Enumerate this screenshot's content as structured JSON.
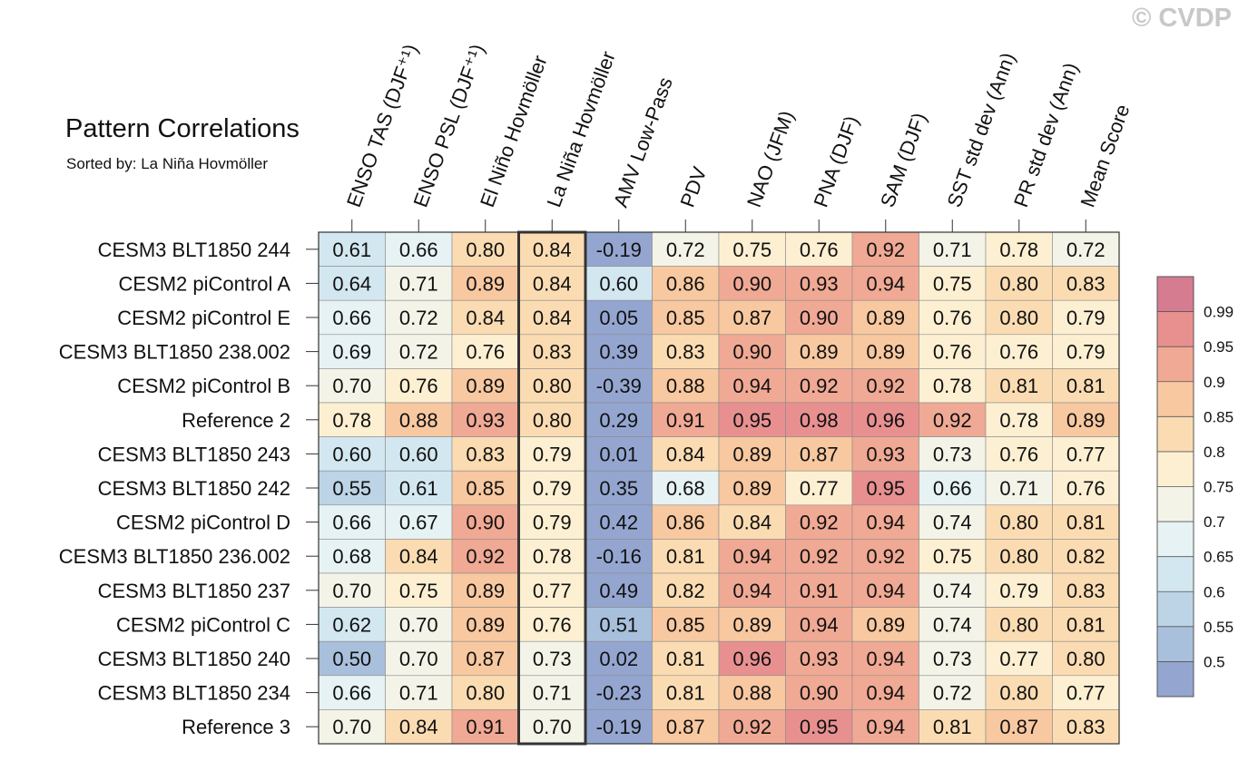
{
  "chart_data": {
    "type": "heatmap",
    "title": "Pattern Correlations",
    "subtitle": "Sorted by: La Niña Hovmöller",
    "watermark": "© CVDP",
    "highlight_column": "La Niña Hovmöller",
    "columns": [
      "ENSO TAS (DJF⁺¹)",
      "ENSO PSL (DJF⁺¹)",
      "El Niño Hovmöller",
      "La Niña Hovmöller",
      "AMV Low-Pass",
      "PDV",
      "NAO (JFM)",
      "PNA (DJF)",
      "SAM (DJF)",
      "SST std dev (Ann)",
      "PR std dev (Ann)",
      "Mean Score"
    ],
    "rows": [
      "CESM3 BLT1850 244",
      "CESM2 piControl A",
      "CESM2 piControl E",
      "CESM3 BLT1850 238.002",
      "CESM2 piControl B",
      "Reference 2",
      "CESM3 BLT1850 243",
      "CESM3 BLT1850 242",
      "CESM2 piControl D",
      "CESM3 BLT1850 236.002",
      "CESM3 BLT1850 237",
      "CESM2 piControl C",
      "CESM3 BLT1850 240",
      "CESM3 BLT1850 234",
      "Reference 3"
    ],
    "values": [
      [
        "0.61",
        "0.66",
        "0.80",
        "0.84",
        "-0.19",
        "0.72",
        "0.75",
        "0.76",
        "0.92",
        "0.71",
        "0.78",
        "0.72"
      ],
      [
        "0.64",
        "0.71",
        "0.89",
        "0.84",
        "0.60",
        "0.86",
        "0.90",
        "0.93",
        "0.94",
        "0.75",
        "0.80",
        "0.83"
      ],
      [
        "0.66",
        "0.72",
        "0.84",
        "0.84",
        "0.05",
        "0.85",
        "0.87",
        "0.90",
        "0.89",
        "0.76",
        "0.80",
        "0.79"
      ],
      [
        "0.69",
        "0.72",
        "0.76",
        "0.83",
        "0.39",
        "0.83",
        "0.90",
        "0.89",
        "0.89",
        "0.76",
        "0.76",
        "0.79"
      ],
      [
        "0.70",
        "0.76",
        "0.89",
        "0.80",
        "-0.39",
        "0.88",
        "0.94",
        "0.92",
        "0.92",
        "0.78",
        "0.81",
        "0.81"
      ],
      [
        "0.78",
        "0.88",
        "0.93",
        "0.80",
        "0.29",
        "0.91",
        "0.95",
        "0.98",
        "0.96",
        "0.92",
        "0.78",
        "0.89"
      ],
      [
        "0.60",
        "0.60",
        "0.83",
        "0.79",
        "0.01",
        "0.84",
        "0.89",
        "0.87",
        "0.93",
        "0.73",
        "0.76",
        "0.77"
      ],
      [
        "0.55",
        "0.61",
        "0.85",
        "0.79",
        "0.35",
        "0.68",
        "0.89",
        "0.77",
        "0.95",
        "0.66",
        "0.71",
        "0.76"
      ],
      [
        "0.66",
        "0.67",
        "0.90",
        "0.79",
        "0.42",
        "0.86",
        "0.84",
        "0.92",
        "0.94",
        "0.74",
        "0.80",
        "0.81"
      ],
      [
        "0.68",
        "0.84",
        "0.92",
        "0.78",
        "-0.16",
        "0.81",
        "0.94",
        "0.92",
        "0.92",
        "0.75",
        "0.80",
        "0.82"
      ],
      [
        "0.70",
        "0.75",
        "0.89",
        "0.77",
        "0.49",
        "0.82",
        "0.94",
        "0.91",
        "0.94",
        "0.74",
        "0.79",
        "0.83"
      ],
      [
        "0.62",
        "0.70",
        "0.89",
        "0.76",
        "0.51",
        "0.85",
        "0.89",
        "0.94",
        "0.89",
        "0.74",
        "0.80",
        "0.81"
      ],
      [
        "0.50",
        "0.70",
        "0.87",
        "0.73",
        "0.02",
        "0.81",
        "0.96",
        "0.93",
        "0.94",
        "0.73",
        "0.77",
        "0.80"
      ],
      [
        "0.66",
        "0.71",
        "0.80",
        "0.71",
        "-0.23",
        "0.81",
        "0.88",
        "0.90",
        "0.94",
        "0.72",
        "0.80",
        "0.77"
      ],
      [
        "0.70",
        "0.84",
        "0.91",
        "0.70",
        "-0.19",
        "0.87",
        "0.92",
        "0.95",
        "0.94",
        "0.81",
        "0.87",
        "0.83"
      ]
    ],
    "colorbar": {
      "levels": [
        "0.5",
        "0.55",
        "0.6",
        "0.65",
        "0.7",
        "0.75",
        "0.8",
        "0.85",
        "0.9",
        "0.95",
        "0.99"
      ],
      "colors": [
        "#94a6d0",
        "#a8c0dc",
        "#bcd4e6",
        "#d3e7f0",
        "#e6f2f4",
        "#f3f3e8",
        "#fdf0d2",
        "#fbdcb2",
        "#f8c8a0",
        "#f0a994",
        "#e89090",
        "#d67c91"
      ]
    }
  }
}
